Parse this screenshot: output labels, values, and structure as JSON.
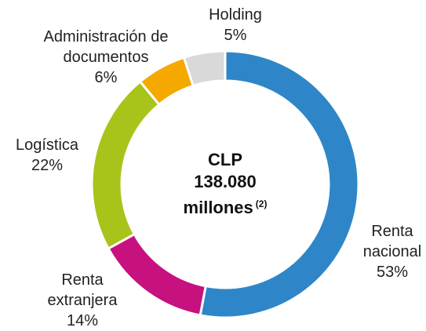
{
  "chart_data": {
    "type": "donut",
    "categories": [
      "Renta nacional",
      "Renta extranjera",
      "Logística",
      "Administración de documentos",
      "Holding"
    ],
    "values": [
      53,
      14,
      22,
      6,
      5
    ],
    "value_labels": [
      "53%",
      "14%",
      "22%",
      "6%",
      "5%"
    ],
    "colors": [
      "#2e86c8",
      "#c6117f",
      "#a8c41a",
      "#f5a800",
      "#d9d9d9"
    ],
    "center_text": {
      "lines": [
        "CLP",
        "138.080",
        "millones"
      ],
      "note": "(2)"
    }
  }
}
